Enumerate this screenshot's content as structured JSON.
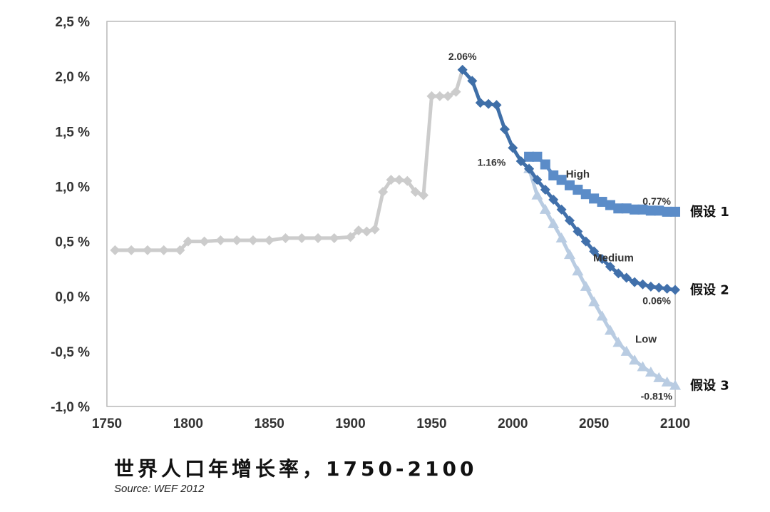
{
  "title": "世界人口年增长率，1750-2100",
  "source": "Source: WEF 2012",
  "chart_data": {
    "type": "line",
    "title": "世界人口年增长率，1750-2100",
    "xlabel": "",
    "ylabel": "",
    "xlim": [
      1750,
      2100
    ],
    "ylim": [
      -1.0,
      2.5
    ],
    "x_ticks": [
      1750,
      1800,
      1850,
      1900,
      1950,
      2000,
      2050,
      2100
    ],
    "x_tick_labels": [
      "1750",
      "1800",
      "1850",
      "1900",
      "1950",
      "2000",
      "2050",
      "2100"
    ],
    "y_ticks": [
      -1.0,
      -0.5,
      0.0,
      0.5,
      1.0,
      1.5,
      2.0,
      2.5
    ],
    "y_tick_labels": [
      "-1,0 %",
      "-0,5 %",
      "0,0 %",
      "0,5 %",
      "1,0 %",
      "1,5 %",
      "2,0 %",
      "2,5 %"
    ],
    "grid": true,
    "legend": "none",
    "series": [
      {
        "name": "",
        "color": "#cccccc",
        "marker": "diamond",
        "points": [
          [
            1755,
            0.42
          ],
          [
            1765,
            0.42
          ],
          [
            1775,
            0.42
          ],
          [
            1785,
            0.42
          ],
          [
            1795,
            0.42
          ],
          [
            1800,
            0.5
          ],
          [
            1810,
            0.5
          ],
          [
            1820,
            0.51
          ],
          [
            1830,
            0.51
          ],
          [
            1840,
            0.51
          ],
          [
            1850,
            0.51
          ],
          [
            1860,
            0.53
          ],
          [
            1870,
            0.53
          ],
          [
            1880,
            0.53
          ],
          [
            1890,
            0.53
          ],
          [
            1900,
            0.54
          ],
          [
            1905,
            0.6
          ],
          [
            1910,
            0.59
          ],
          [
            1915,
            0.61
          ],
          [
            1920,
            0.95
          ],
          [
            1925,
            1.06
          ],
          [
            1930,
            1.06
          ],
          [
            1935,
            1.05
          ],
          [
            1940,
            0.95
          ],
          [
            1945,
            0.92
          ],
          [
            1950,
            1.82
          ],
          [
            1955,
            1.82
          ],
          [
            1960,
            1.82
          ],
          [
            1965,
            1.86
          ],
          [
            1969,
            2.06
          ]
        ]
      },
      {
        "name": "",
        "color": "#3f6fa8",
        "marker": "diamond",
        "points": [
          [
            1969,
            2.06
          ],
          [
            1975,
            1.96
          ],
          [
            1980,
            1.76
          ],
          [
            1985,
            1.75
          ],
          [
            1990,
            1.74
          ],
          [
            1995,
            1.52
          ],
          [
            2000,
            1.35
          ],
          [
            2005,
            1.23
          ],
          [
            2010,
            1.16
          ]
        ]
      },
      {
        "name": "High",
        "color": "#5b8cc8",
        "marker": "square",
        "points": [
          [
            2010,
            1.27
          ],
          [
            2015,
            1.27
          ],
          [
            2020,
            1.2
          ],
          [
            2025,
            1.1
          ],
          [
            2030,
            1.06
          ],
          [
            2035,
            1.01
          ],
          [
            2040,
            0.97
          ],
          [
            2045,
            0.93
          ],
          [
            2050,
            0.89
          ],
          [
            2055,
            0.86
          ],
          [
            2060,
            0.83
          ],
          [
            2065,
            0.8
          ],
          [
            2070,
            0.8
          ],
          [
            2075,
            0.79
          ],
          [
            2080,
            0.79
          ],
          [
            2085,
            0.78
          ],
          [
            2090,
            0.78
          ],
          [
            2095,
            0.77
          ],
          [
            2100,
            0.77
          ]
        ]
      },
      {
        "name": "Medium",
        "color": "#4170ab",
        "marker": "diamond",
        "points": [
          [
            2010,
            1.16
          ],
          [
            2015,
            1.06
          ],
          [
            2020,
            0.97
          ],
          [
            2025,
            0.88
          ],
          [
            2030,
            0.79
          ],
          [
            2035,
            0.69
          ],
          [
            2040,
            0.59
          ],
          [
            2045,
            0.5
          ],
          [
            2050,
            0.41
          ],
          [
            2055,
            0.34
          ],
          [
            2060,
            0.27
          ],
          [
            2065,
            0.21
          ],
          [
            2070,
            0.17
          ],
          [
            2075,
            0.13
          ],
          [
            2080,
            0.11
          ],
          [
            2085,
            0.09
          ],
          [
            2090,
            0.08
          ],
          [
            2095,
            0.07
          ],
          [
            2100,
            0.06
          ]
        ]
      },
      {
        "name": "Low",
        "color": "#b9cce2",
        "marker": "triangle",
        "points": [
          [
            2010,
            1.16
          ],
          [
            2015,
            0.92
          ],
          [
            2020,
            0.79
          ],
          [
            2025,
            0.66
          ],
          [
            2030,
            0.53
          ],
          [
            2035,
            0.38
          ],
          [
            2040,
            0.23
          ],
          [
            2045,
            0.09
          ],
          [
            2050,
            -0.05
          ],
          [
            2055,
            -0.18
          ],
          [
            2060,
            -0.31
          ],
          [
            2065,
            -0.42
          ],
          [
            2070,
            -0.5
          ],
          [
            2075,
            -0.58
          ],
          [
            2080,
            -0.64
          ],
          [
            2085,
            -0.69
          ],
          [
            2090,
            -0.74
          ],
          [
            2095,
            -0.78
          ],
          [
            2100,
            -0.81
          ]
        ]
      }
    ],
    "series_labels": [
      {
        "text": "High",
        "x": 2040,
        "y": 1.08
      },
      {
        "text": "Medium",
        "x": 2062,
        "y": 0.32
      },
      {
        "text": "Low",
        "x": 2082,
        "y": -0.42
      }
    ],
    "annotations": [
      {
        "text": "2.06%",
        "x": 1969,
        "y": 2.06
      },
      {
        "text": "1.16%",
        "x": 2000,
        "y": 1.16
      },
      {
        "text": "0.77%",
        "x": 2100,
        "y": 0.77
      },
      {
        "text": "0.06%",
        "x": 2100,
        "y": 0.06
      },
      {
        "text": "-0.81%",
        "x": 2100,
        "y": -0.81
      }
    ],
    "scenario_labels": [
      {
        "text": "假设 1",
        "y": 0.77
      },
      {
        "text": "假设 2",
        "y": 0.06
      },
      {
        "text": "假设 3",
        "y": -0.81
      }
    ]
  }
}
